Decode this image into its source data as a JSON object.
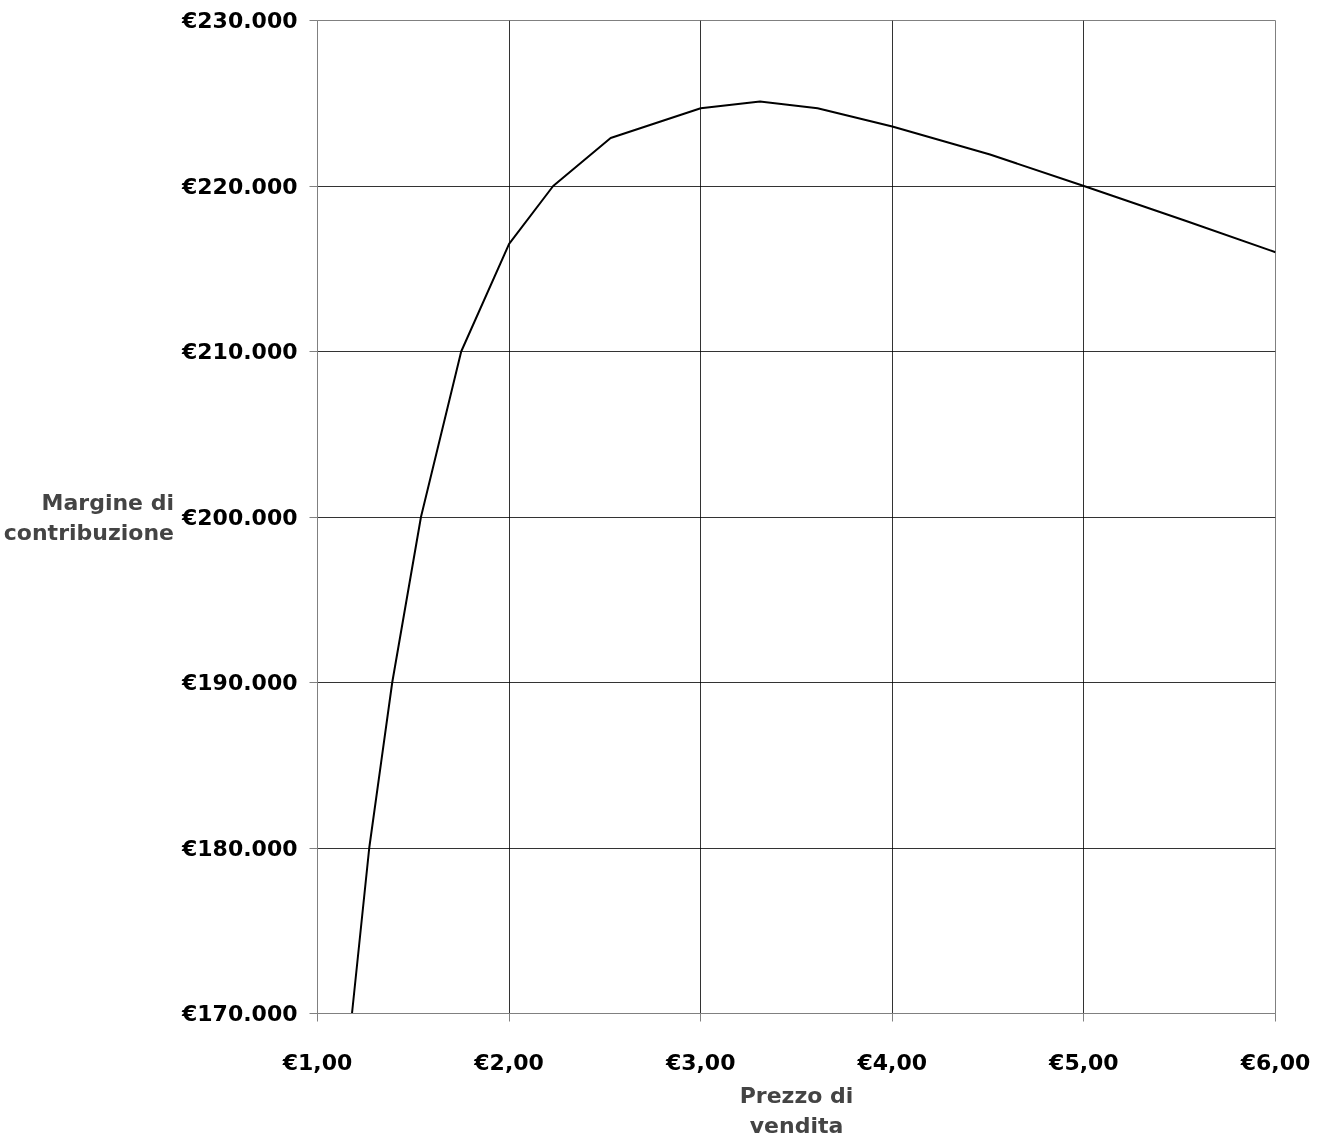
{
  "chart_data": {
    "type": "line",
    "xlabel": "Prezzo di vendita",
    "ylabel": "Margine di contribuzione",
    "x": [
      1.18,
      1.27,
      1.39,
      1.54,
      1.75,
      2.0,
      2.23,
      2.53,
      3.0,
      3.31,
      3.61,
      4.0,
      4.51,
      5.0,
      5.53,
      6.0
    ],
    "series": [
      {
        "color": "#000000",
        "values": [
          170000,
          180000,
          190000,
          200000,
          210000,
          216500,
          220000,
          222900,
          224700,
          225100,
          224700,
          223600,
          221900,
          220000,
          217900,
          216000
        ]
      }
    ],
    "xlim": [
      1,
      6
    ],
    "ylim": [
      170000,
      230000
    ],
    "xticks": [
      {
        "value": 1,
        "label": "€1,00"
      },
      {
        "value": 2,
        "label": "€2,00"
      },
      {
        "value": 3,
        "label": "€3,00"
      },
      {
        "value": 4,
        "label": "€4,00"
      },
      {
        "value": 5,
        "label": "€5,00"
      },
      {
        "value": 6,
        "label": "€6,00"
      }
    ],
    "yticks": [
      {
        "value": 170000,
        "label": "€170.000"
      },
      {
        "value": 180000,
        "label": "€180.000"
      },
      {
        "value": 190000,
        "label": "€190.000"
      },
      {
        "value": 200000,
        "label": "€200.000"
      },
      {
        "value": 210000,
        "label": "€210.000"
      },
      {
        "value": 220000,
        "label": "€220.000"
      },
      {
        "value": 230000,
        "label": "€230.000"
      }
    ],
    "grid": true,
    "marker": "none",
    "line_style": "solid"
  }
}
